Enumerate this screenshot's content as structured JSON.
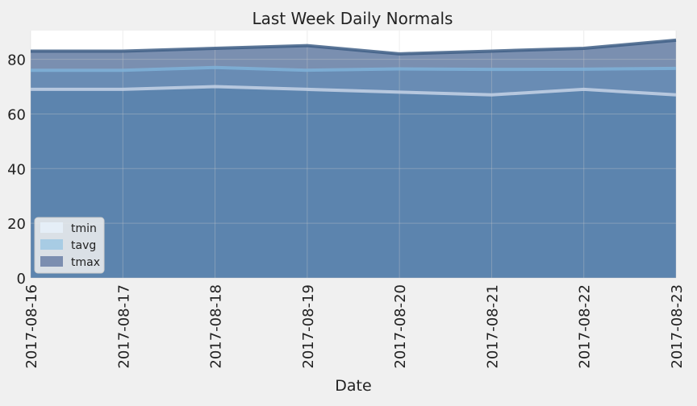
{
  "chart_data": {
    "type": "area",
    "title": "Last Week Daily Normals",
    "xlabel": "Date",
    "ylabel": "",
    "categories": [
      "2017-08-16",
      "2017-08-17",
      "2017-08-18",
      "2017-08-19",
      "2017-08-20",
      "2017-08-21",
      "2017-08-22",
      "2017-08-23"
    ],
    "series": [
      {
        "name": "tmin",
        "values": [
          69,
          69,
          70,
          69,
          68,
          67,
          69,
          67
        ],
        "color": "#e5eef7"
      },
      {
        "name": "tavg",
        "values": [
          76,
          76,
          77,
          76,
          76.5,
          76.3,
          76.4,
          76.7
        ],
        "color": "#a8cce4"
      },
      {
        "name": "tmax",
        "values": [
          83,
          83,
          84,
          85,
          82,
          83,
          84,
          87
        ],
        "color": "#7b8eb0"
      }
    ],
    "stacked": false,
    "ylim": [
      0,
      90.5
    ],
    "yticks": [
      0,
      20,
      40,
      60,
      80
    ],
    "grid": true,
    "legend_position": "lower-left",
    "background": "#f0f0f0",
    "plot_background": "#ffffff"
  }
}
